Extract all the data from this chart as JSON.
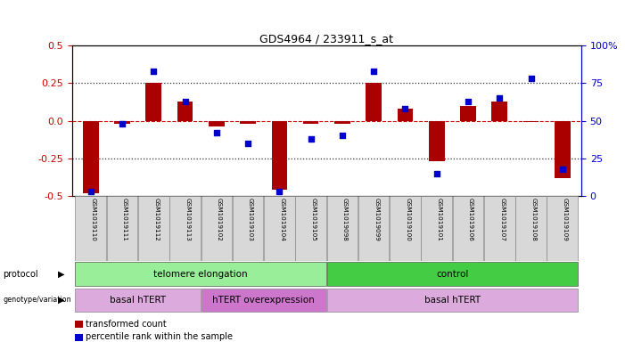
{
  "title": "GDS4964 / 233911_s_at",
  "samples": [
    "GSM1019110",
    "GSM1019111",
    "GSM1019112",
    "GSM1019113",
    "GSM1019102",
    "GSM1019103",
    "GSM1019104",
    "GSM1019105",
    "GSM1019098",
    "GSM1019099",
    "GSM1019100",
    "GSM1019101",
    "GSM1019106",
    "GSM1019107",
    "GSM1019108",
    "GSM1019109"
  ],
  "transformed_count": [
    -0.48,
    -0.02,
    0.25,
    0.13,
    -0.04,
    -0.02,
    -0.46,
    -0.02,
    -0.02,
    0.25,
    0.08,
    -0.27,
    0.1,
    0.13,
    -0.01,
    -0.38
  ],
  "percentile_rank": [
    3,
    48,
    83,
    63,
    42,
    35,
    3,
    38,
    40,
    83,
    58,
    15,
    63,
    65,
    78,
    18
  ],
  "bar_color": "#aa0000",
  "dot_color": "#0000cc",
  "ylim_left": [
    -0.5,
    0.5
  ],
  "ylim_right": [
    0,
    100
  ],
  "yticks_left": [
    -0.5,
    -0.25,
    0.0,
    0.25,
    0.5
  ],
  "yticks_right": [
    0,
    25,
    50,
    75,
    100
  ],
  "hline_color": "#cc0000",
  "dotted_color": "#333333",
  "protocol_labels": [
    {
      "text": "telomere elongation",
      "start": 0,
      "end": 7,
      "color": "#99ee99"
    },
    {
      "text": "control",
      "start": 8,
      "end": 15,
      "color": "#44cc44"
    }
  ],
  "genotype_labels": [
    {
      "text": "basal hTERT",
      "start": 0,
      "end": 3,
      "color": "#ddaadd"
    },
    {
      "text": "hTERT overexpression",
      "start": 4,
      "end": 7,
      "color": "#cc77cc"
    },
    {
      "text": "basal hTERT",
      "start": 8,
      "end": 15,
      "color": "#ddaadd"
    }
  ],
  "legend_items": [
    {
      "color": "#aa0000",
      "label": "transformed count"
    },
    {
      "color": "#0000cc",
      "label": "percentile rank within the sample"
    }
  ],
  "background_color": "#ffffff",
  "plot_bg": "#ffffff",
  "right_axis_color": "#0000cc",
  "left_axis_color": "#cc0000"
}
